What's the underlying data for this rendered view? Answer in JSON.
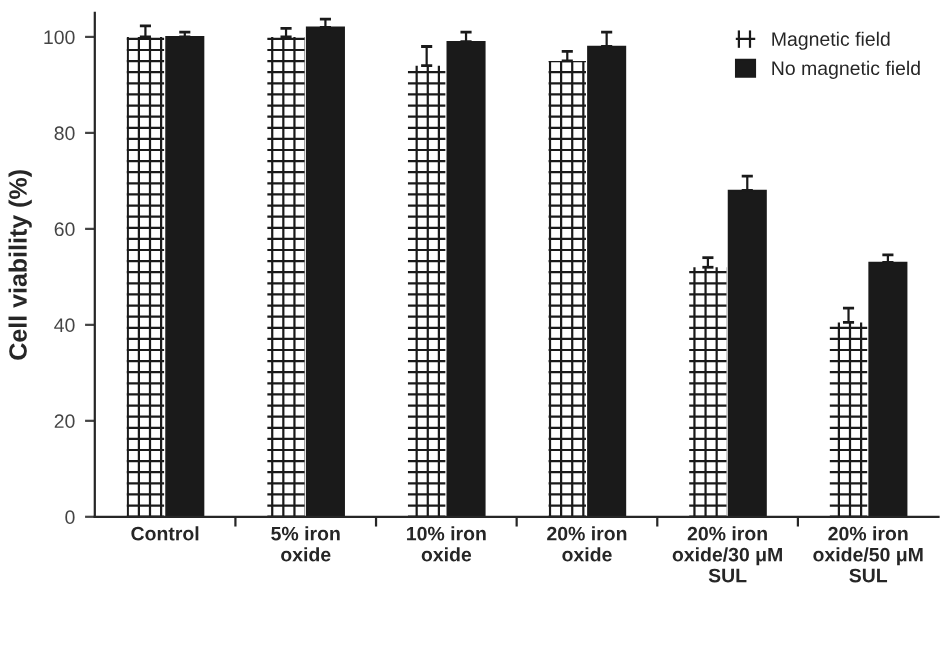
{
  "chart_data": {
    "type": "bar",
    "ylabel": "Cell viability (%)",
    "categories": [
      "Control",
      "5% iron\noxide",
      "10% iron\noxide",
      "20% iron\noxide",
      "20% iron\noxide/30 μM\nSUL",
      "20% iron\noxide/50 μM\nSUL"
    ],
    "series": [
      {
        "name": "Magnetic field",
        "color": "#ffffff",
        "values": [
          100,
          100,
          94,
          95,
          52,
          40.5
        ],
        "errors": [
          [
            100,
            102.3
          ],
          [
            100,
            101.8
          ],
          [
            94,
            98
          ],
          [
            95,
            97
          ],
          [
            52,
            54
          ],
          [
            40.5,
            43.5
          ]
        ]
      },
      {
        "name": "No magnetic field",
        "color": "#1a1a1a",
        "values": [
          100,
          102,
          99,
          98,
          68,
          53
        ],
        "errors": [
          [
            100,
            101
          ],
          [
            102,
            103.7
          ],
          [
            99,
            101
          ],
          [
            98,
            101
          ],
          [
            68,
            71
          ],
          [
            53,
            54.6
          ]
        ]
      }
    ],
    "ylim": [
      0,
      105
    ],
    "yticks": [
      0,
      20,
      40,
      60,
      80,
      100
    ],
    "grid": false,
    "legend": "top right"
  }
}
